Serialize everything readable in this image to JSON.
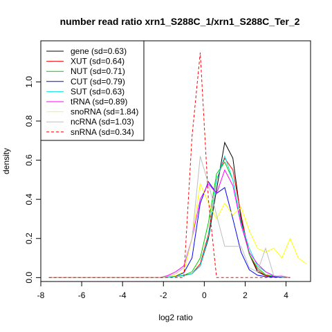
{
  "chart_data": {
    "type": "line",
    "title": "number read ratio xrn1_S288C_1/xrn1_S288C_Ter_2",
    "xlabel": "log2 ratio",
    "ylabel": "density",
    "xlim": [
      -8,
      5.2
    ],
    "ylim": [
      -0.02,
      1.21
    ],
    "xticks": [
      -8,
      -6,
      -4,
      -2,
      0,
      2,
      4
    ],
    "yticks": [
      0.0,
      0.2,
      0.4,
      0.6,
      0.8,
      1.0
    ],
    "grid": false,
    "legend_position": "top-left",
    "series": [
      {
        "name": "gene (sd=0.63)",
        "color": "#000000",
        "dash": false,
        "x": [
          -7.6,
          -2.2,
          -1.8,
          -1.4,
          -1.0,
          -0.6,
          -0.2,
          0.2,
          0.6,
          1.0,
          1.4,
          1.8,
          2.2,
          2.6,
          3.0,
          3.4,
          3.8,
          4.2
        ],
        "y": [
          0,
          0,
          0.002,
          0.005,
          0.012,
          0.02,
          0.06,
          0.2,
          0.45,
          0.69,
          0.61,
          0.3,
          0.12,
          0.03,
          0.01,
          0.005,
          0.003,
          0
        ]
      },
      {
        "name": "XUT (sd=0.64)",
        "color": "#ff0000",
        "dash": false,
        "x": [
          -7.6,
          -2.2,
          -1.8,
          -1.4,
          -1.0,
          -0.6,
          -0.2,
          0.2,
          0.6,
          1.0,
          1.4,
          1.8,
          2.2,
          2.6,
          3.0,
          3.4,
          3.8,
          4.2
        ],
        "y": [
          0,
          0,
          0.002,
          0.005,
          0.01,
          0.02,
          0.07,
          0.22,
          0.5,
          0.61,
          0.55,
          0.32,
          0.12,
          0.04,
          0.01,
          0.005,
          0.003,
          0
        ]
      },
      {
        "name": "NUT (sd=0.71)",
        "color": "#00cc00",
        "dash": false,
        "x": [
          -7.6,
          -2.2,
          -1.8,
          -1.4,
          -1.0,
          -0.6,
          -0.2,
          0.2,
          0.6,
          1.0,
          1.4,
          1.8,
          2.2,
          2.6,
          3.0,
          3.4,
          3.8,
          4.2
        ],
        "y": [
          0,
          0,
          0.002,
          0.006,
          0.012,
          0.03,
          0.1,
          0.28,
          0.53,
          0.59,
          0.5,
          0.28,
          0.12,
          0.05,
          0.015,
          0.006,
          0.003,
          0
        ]
      },
      {
        "name": "CUT (sd=0.79)",
        "color": "#0000ff",
        "dash": false,
        "x": [
          -7.6,
          -2.2,
          -1.8,
          -1.4,
          -1.0,
          -0.6,
          -0.2,
          0.2,
          0.6,
          1.0,
          1.4,
          1.8,
          2.2,
          2.6,
          3.0,
          3.4,
          3.8,
          4.2
        ],
        "y": [
          0,
          0,
          0.003,
          0.008,
          0.025,
          0.1,
          0.38,
          0.49,
          0.43,
          0.46,
          0.3,
          0.13,
          0.04,
          0.012,
          0.005,
          0.003,
          0.002,
          0
        ]
      },
      {
        "name": "SUT (sd=0.63)",
        "color": "#00e5e5",
        "dash": false,
        "x": [
          -7.6,
          -2.2,
          -1.8,
          -1.4,
          -1.0,
          -0.6,
          -0.2,
          0.2,
          0.6,
          1.0,
          1.4,
          1.8,
          2.2,
          2.6,
          3.0,
          3.4,
          3.8,
          4.2
        ],
        "y": [
          0,
          0,
          0.002,
          0.005,
          0.01,
          0.02,
          0.06,
          0.21,
          0.5,
          0.62,
          0.5,
          0.28,
          0.15,
          0.06,
          0.03,
          0.01,
          0.004,
          0
        ]
      },
      {
        "name": "tRNA (sd=0.89)",
        "color": "#ff00ff",
        "dash": false,
        "x": [
          -7.6,
          -2.2,
          -1.8,
          -1.4,
          -1.0,
          -0.6,
          -0.2,
          0.2,
          0.6,
          1.0,
          1.4,
          1.8,
          2.2,
          2.6,
          3.0,
          3.4,
          3.8,
          4.2
        ],
        "y": [
          0,
          0,
          0.01,
          0.03,
          0.06,
          0.2,
          0.4,
          0.48,
          0.43,
          0.55,
          0.47,
          0.27,
          0.13,
          0.07,
          0.03,
          0.008,
          0.008,
          0
        ]
      },
      {
        "name": "snoRNA (sd=1.84)",
        "color": "#ffff00",
        "dash": false,
        "x": [
          -7.6,
          -2.2,
          -1.8,
          -1.4,
          -1.0,
          -0.6,
          -0.2,
          0.2,
          0.6,
          1.0,
          1.4,
          1.8,
          2.2,
          2.6,
          3.0,
          3.4,
          3.8,
          4.2,
          4.6,
          5.0
        ],
        "y": [
          0,
          0,
          0.005,
          0.01,
          0.03,
          0.2,
          0.48,
          0.38,
          0.3,
          0.38,
          0.32,
          0.36,
          0.24,
          0.15,
          0.13,
          0.15,
          0.1,
          0.2,
          0.1,
          0.07
        ]
      },
      {
        "name": "ncRNA (sd=1.03)",
        "color": "#bebebe",
        "dash": false,
        "x": [
          -7.6,
          -2.2,
          -1.8,
          -1.4,
          -1.0,
          -0.6,
          -0.2,
          0.2,
          0.6,
          1.0,
          1.4,
          1.8,
          2.2,
          2.6,
          3.0,
          3.4,
          3.8,
          4.2
        ],
        "y": [
          0,
          0,
          0.005,
          0.02,
          0.05,
          0.2,
          0.62,
          0.48,
          0.32,
          0.16,
          0.16,
          0.16,
          0.05,
          0.03,
          0.15,
          0.01,
          0.005,
          0
        ]
      },
      {
        "name": "snRNA (sd=0.34)",
        "color": "#ff0000",
        "dash": true,
        "x": [
          -7.6,
          -1.0,
          -0.6,
          -0.2,
          0.2,
          0.6,
          1.0,
          1.4,
          1.8,
          2.2,
          2.6,
          3.0,
          3.4,
          3.8,
          4.2
        ],
        "y": [
          0,
          0,
          0.72,
          1.15,
          0.4,
          0,
          0,
          0,
          0,
          0,
          0,
          0,
          0,
          0,
          0
        ]
      }
    ]
  }
}
